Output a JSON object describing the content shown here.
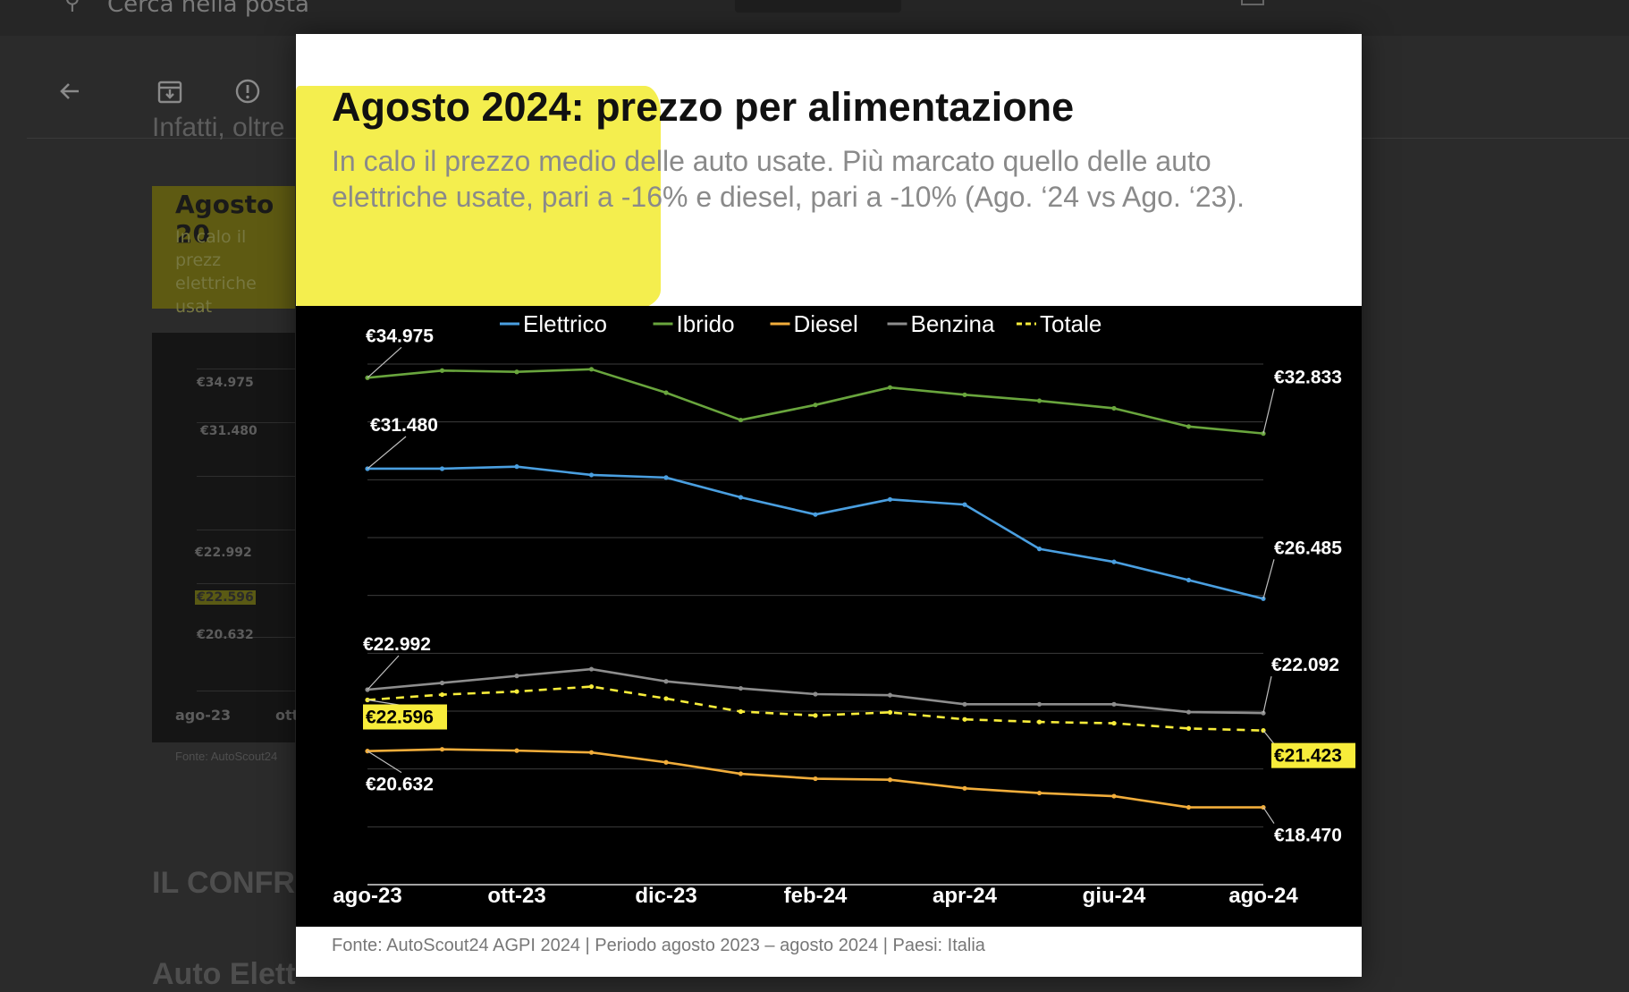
{
  "app": {
    "search_text": "Cerca nella posta",
    "bg_article_text": "Infatti, oltre",
    "bg_card_title": "Agosto 20",
    "bg_card_sub1": "In calo il prezz",
    "bg_card_sub2": "elettriche usat",
    "bg_chart_labels": [
      "€34.975",
      "€31.480",
      "€22.992",
      "€22.596",
      "€20.632"
    ],
    "bg_chart_x": [
      "ago-23",
      "ott"
    ],
    "bg_source": "Fonte: AutoScout24",
    "bg_heading1": "IL CONFR",
    "bg_heading2": "Auto Elett"
  },
  "slide": {
    "title": "Agosto 2024: prezzo per alimentazione",
    "subtitle_line1": "In calo il prezzo medio delle auto usate. Più marcato quello delle auto",
    "subtitle_line2": "elettriche usate, pari a -16% e diesel, pari a -10% (Ago. ‘24 vs Ago. ‘23).",
    "source": "Fonte: AutoScout24 AGPI 2024 | Periodo agosto 2023 – agosto 2024 | Paesi: Italia"
  },
  "chart_data": {
    "type": "line",
    "x": [
      "ago-23",
      "set-23",
      "ott-23",
      "nov-23",
      "dic-23",
      "gen-24",
      "feb-24",
      "mar-24",
      "apr-24",
      "mag-24",
      "giu-24",
      "lug-24",
      "ago-24"
    ],
    "x_tick_labels": [
      "ago-23",
      "ott-23",
      "dic-23",
      "feb-24",
      "apr-24",
      "giu-24",
      "ago-24"
    ],
    "ylim": [
      15500,
      35500
    ],
    "grid": true,
    "legend_position": "top",
    "series": [
      {
        "name": "Elettrico",
        "color": "#4a9fe0",
        "dashed": false,
        "values": [
          31480,
          31480,
          31560,
          31240,
          31140,
          30380,
          29720,
          30300,
          30100,
          28400,
          27900,
          27200,
          26485
        ],
        "labels": {
          "start": "€31.480",
          "end": "€26.485"
        }
      },
      {
        "name": "Ibrido",
        "color": "#69a53d",
        "dashed": false,
        "values": [
          34975,
          35250,
          35200,
          35300,
          34400,
          33350,
          33930,
          34600,
          34320,
          34090,
          33800,
          33100,
          32833
        ],
        "labels": {
          "start": "€34.975",
          "end": "€32.833"
        }
      },
      {
        "name": "Diesel",
        "color": "#f1ad3b",
        "dashed": false,
        "values": [
          20632,
          20700,
          20650,
          20580,
          20200,
          19760,
          19570,
          19530,
          19200,
          19020,
          18900,
          18470,
          18470
        ],
        "labels": {
          "start": "€20.632",
          "end": "€18.470"
        }
      },
      {
        "name": "Benzina",
        "color": "#8d8d8d",
        "dashed": false,
        "values": [
          22992,
          23250,
          23520,
          23780,
          23310,
          23040,
          22820,
          22780,
          22430,
          22430,
          22430,
          22130,
          22092
        ],
        "labels": {
          "start": "€22.992",
          "end": "€22.092"
        }
      },
      {
        "name": "Totale",
        "color": "#f7ec3a",
        "dashed": true,
        "values": [
          22596,
          22800,
          22920,
          23110,
          22650,
          22150,
          22000,
          22120,
          21850,
          21750,
          21700,
          21500,
          21423
        ],
        "labels": {
          "start": "€22.596",
          "end": "€21.423"
        },
        "labels_highlighted": true
      }
    ]
  }
}
